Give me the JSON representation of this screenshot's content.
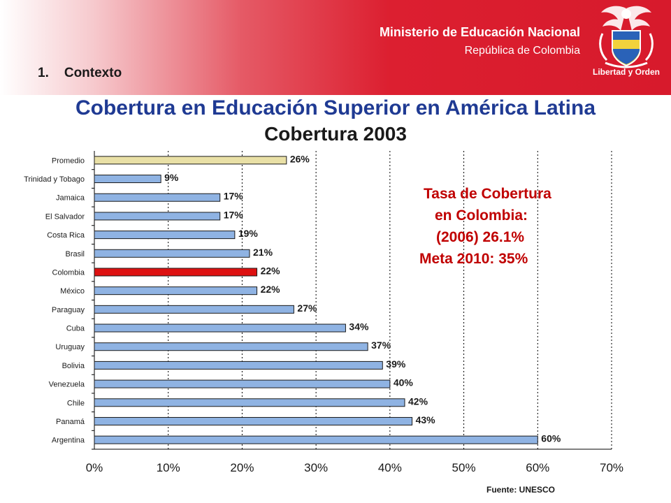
{
  "header": {
    "ministry": "Ministerio de Educación Nacional",
    "republic": "República de Colombia",
    "motto": "Libertad y Orden",
    "section_number": "1.",
    "section_title": "Contexto"
  },
  "callout": {
    "line1": "Tasa de Cobertura",
    "line2": "en Colombia:",
    "line3": "(2006)  26.1%",
    "line4": "Meta 2010: 35%"
  },
  "source": "Fuente:  UNESCO",
  "colors": {
    "banner_red": "#d71a2c",
    "title_blue": "#1f3a93",
    "callout_red": "#c00000",
    "bar_default": "#8fb3e3",
    "bar_highlight_colombia": "#dd1111",
    "bar_highlight_promedio": "#e9e0a6"
  },
  "chart_data": {
    "type": "bar",
    "orientation": "horizontal",
    "title": "Cobertura en Educación Superior en América Latina",
    "subtitle": "Cobertura  2003",
    "xlabel": "",
    "ylabel": "",
    "xlim": [
      0,
      70
    ],
    "x_ticks": [
      "0%",
      "10%",
      "20%",
      "30%",
      "40%",
      "50%",
      "60%",
      "70%"
    ],
    "grid": "vertical-dashed",
    "categories": [
      "Promedio",
      "Trinidad y Tobago",
      "Jamaica",
      "El Salvador",
      "Costa Rica",
      "Brasil",
      "Colombia",
      "México",
      "Paraguay",
      "Cuba",
      "Uruguay",
      "Bolivia",
      "Venezuela",
      "Chile",
      "Panamá",
      "Argentina"
    ],
    "values": [
      26,
      9,
      17,
      17,
      19,
      21,
      22,
      22,
      27,
      34,
      37,
      39,
      40,
      42,
      43,
      60
    ],
    "value_labels": [
      "26%",
      "9%",
      "17%",
      "17%",
      "19%",
      "21%",
      "22%",
      "22%",
      "27%",
      "34%",
      "37%",
      "39%",
      "40%",
      "42%",
      "43%",
      "60%"
    ],
    "highlight": {
      "Colombia": "#dd1111",
      "Promedio": "#e9e0a6"
    }
  }
}
